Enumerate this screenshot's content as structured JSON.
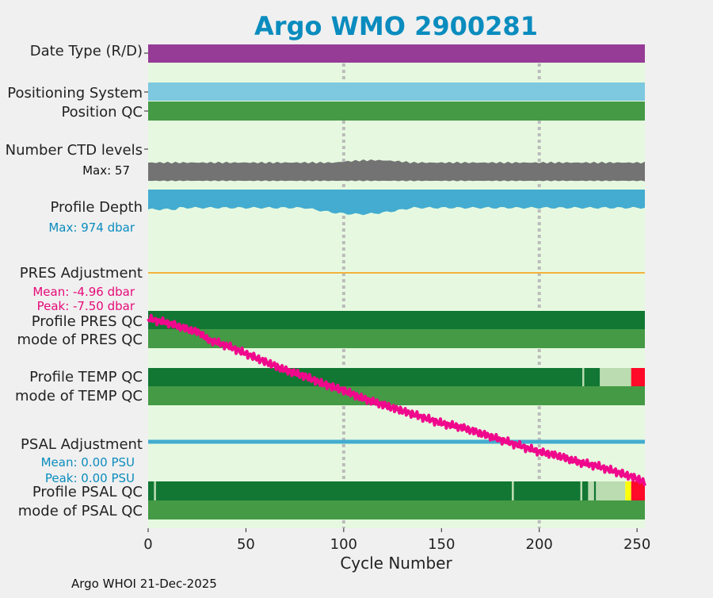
{
  "chart_data": {
    "type": "status-timeline",
    "title": "Argo WMO 2900281",
    "xlabel": "Cycle Number",
    "xlim": [
      0,
      254
    ],
    "xticks": [
      0,
      50,
      100,
      150,
      200,
      250
    ],
    "xtick_labels": [
      "0",
      "50",
      "100",
      "150",
      "200",
      "250"
    ],
    "vertical_gridlines": [
      100,
      200
    ],
    "footer": "Argo WHOI 21-Dec-2025",
    "colors": {
      "plot_bg": "#e6f9e0",
      "data_mode": "#963c96",
      "positioning": "#7ec8e0",
      "qc_good": "#117733",
      "qc_mode": "#459a45",
      "qc_light": "#bbdcb0",
      "ctd": "#737373",
      "depth": "#43acd0",
      "pres_adj": "#f4b23c",
      "psal_adj": "#43acd0",
      "trend": "#f0088c",
      "qc_bad": "#ff0a28",
      "qc_probable": "#ffff0a",
      "title": "#0a8cbe",
      "stat_pink": "#e60a78",
      "stat_blue": "#0a8cbe"
    },
    "rows": {
      "date_type": {
        "label": "Date Type (R/D)",
        "segments": [
          {
            "start": 0,
            "end": 254,
            "code": "D"
          }
        ]
      },
      "positioning_system": {
        "label": "Positioning System",
        "segments": [
          {
            "start": 0,
            "end": 254,
            "code": "ARGOS"
          }
        ]
      },
      "position_qc": {
        "label": "Position QC",
        "segments": [
          {
            "start": 0,
            "end": 254,
            "code": "1"
          }
        ]
      },
      "ctd_levels": {
        "label": "Number CTD levels",
        "max_label": "Max: 57",
        "max": 57
      },
      "profile_depth": {
        "label": "Profile Depth",
        "max_label": "Max:  974 dbar",
        "max_dbar": 974
      },
      "pres_adjustment": {
        "label": "PRES Adjustment",
        "mean_label": "Mean: -4.96 dbar",
        "peak_label": "Peak: -7.50 dbar",
        "mean": -4.96,
        "peak": -7.5
      },
      "profile_pres_qc": {
        "label": "Profile PRES QC",
        "segments": [
          {
            "start": 0,
            "end": 254,
            "code": "A"
          }
        ]
      },
      "mode_pres_qc": {
        "label": "mode of PRES QC",
        "segments": [
          {
            "start": 0,
            "end": 254,
            "code": "1"
          }
        ]
      },
      "profile_temp_qc": {
        "label": "Profile TEMP QC",
        "segments": [
          {
            "start": 0,
            "end": 222,
            "code": "A"
          },
          {
            "start": 222,
            "end": 223,
            "code": "B"
          },
          {
            "start": 223,
            "end": 231,
            "code": "A"
          },
          {
            "start": 231,
            "end": 247,
            "code": "C"
          },
          {
            "start": 247,
            "end": 254,
            "code": "F"
          }
        ]
      },
      "mode_temp_qc": {
        "label": "mode of TEMP QC",
        "segments": [
          {
            "start": 0,
            "end": 254,
            "code": "1"
          }
        ]
      },
      "psal_adjustment": {
        "label": "PSAL Adjustment",
        "mean_label": "Mean: 0.00 PSU",
        "peak_label": "Peak: 0.00 PSU",
        "mean": 0.0,
        "peak": 0.0
      },
      "profile_psal_qc": {
        "label": "Profile PSAL QC",
        "segments": [
          {
            "start": 0,
            "end": 3,
            "code": "A"
          },
          {
            "start": 3,
            "end": 4,
            "code": "B"
          },
          {
            "start": 4,
            "end": 186,
            "code": "A"
          },
          {
            "start": 186,
            "end": 187,
            "code": "B"
          },
          {
            "start": 187,
            "end": 221,
            "code": "A"
          },
          {
            "start": 221,
            "end": 222,
            "code": "C"
          },
          {
            "start": 222,
            "end": 225,
            "code": "A"
          },
          {
            "start": 225,
            "end": 228,
            "code": "C"
          },
          {
            "start": 228,
            "end": 229,
            "code": "A"
          },
          {
            "start": 229,
            "end": 244,
            "code": "C"
          },
          {
            "start": 244,
            "end": 247,
            "code": "D"
          },
          {
            "start": 247,
            "end": 254,
            "code": "F"
          }
        ]
      },
      "mode_psal_qc": {
        "label": "mode of PSAL QC",
        "segments": [
          {
            "start": 0,
            "end": 254,
            "code": "1"
          }
        ]
      }
    },
    "trend_line": {
      "name": "cycle timing trend",
      "x": [
        0,
        10,
        20,
        27,
        30,
        40,
        50,
        60,
        70,
        80,
        90,
        100,
        110,
        120,
        130,
        140,
        150,
        160,
        170,
        180,
        190,
        200,
        210,
        220,
        230,
        240,
        250,
        254
      ],
      "y": [
        0.0,
        0.02,
        0.05,
        0.07,
        0.1,
        0.13,
        0.17,
        0.21,
        0.25,
        0.28,
        0.32,
        0.35,
        0.39,
        0.42,
        0.45,
        0.48,
        0.51,
        0.53,
        0.56,
        0.59,
        0.62,
        0.65,
        0.67,
        0.7,
        0.72,
        0.75,
        0.78,
        0.8
      ],
      "ylim": [
        0,
        1
      ]
    }
  }
}
